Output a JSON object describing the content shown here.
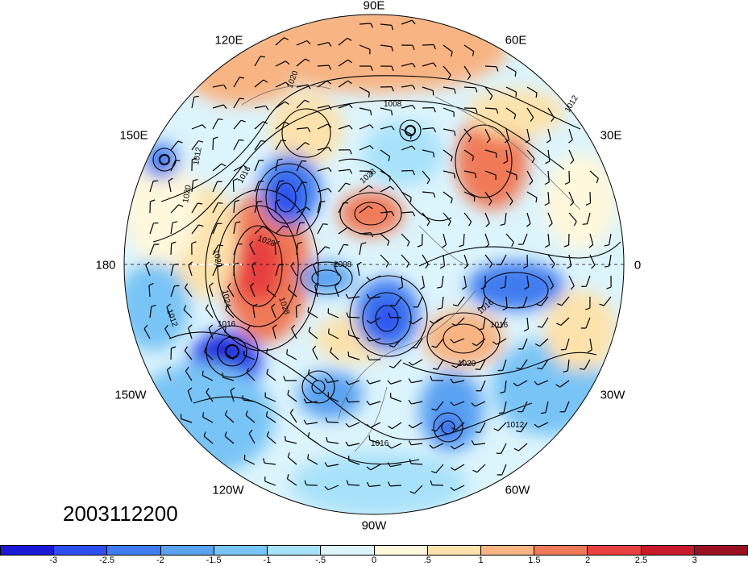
{
  "map": {
    "projection": "polar-stereographic-north",
    "longitude_labels": [
      "90E",
      "60E",
      "30E",
      "0",
      "30W",
      "60W",
      "90W",
      "120W",
      "150W",
      "180",
      "150E",
      "120E"
    ],
    "contour_labels": [
      "1008",
      "1008",
      "1012",
      "1012",
      "1012",
      "1012",
      "1016",
      "1016",
      "1016",
      "1016",
      "1016",
      "1020",
      "1020",
      "1020",
      "1020",
      "1024",
      "1028",
      "1028",
      "1028"
    ],
    "timestamp": "2003112200"
  },
  "colorbar": {
    "labels": [
      "-3",
      "-2.5",
      "-2",
      "-1.5",
      "-1",
      "-.5",
      "0",
      ".5",
      "1",
      "1.5",
      "2",
      "2.5",
      "3"
    ],
    "colors": [
      "#1a1ad6",
      "#2f4ef0",
      "#3f7cf0",
      "#5aa2f2",
      "#78c4f6",
      "#a8e2fa",
      "#dcf4fc",
      "#fff8dc",
      "#fde2ac",
      "#f8b482",
      "#f07a58",
      "#e84040",
      "#c81a2a",
      "#9a1020"
    ]
  }
}
